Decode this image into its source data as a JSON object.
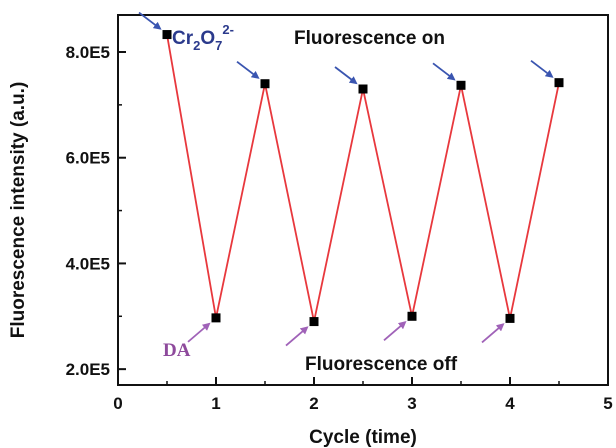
{
  "chart_data": {
    "type": "line",
    "xlabel": "Cycle (time)",
    "ylabel": "Fluorescence intensity (a.u.)",
    "xlim": [
      0,
      5
    ],
    "ylim": [
      170000,
      870000
    ],
    "x_ticks": [
      "0",
      "1",
      "2",
      "3",
      "4",
      "5"
    ],
    "y_ticks": [
      "2.0E5",
      "4.0E5",
      "6.0E5",
      "8.0E5"
    ],
    "y_tick_values": [
      200000,
      400000,
      600000,
      800000
    ],
    "x_tick_values": [
      0,
      1,
      2,
      3,
      4,
      5
    ],
    "series": [
      {
        "x": [
          0.5,
          1.0,
          1.5,
          2.0,
          2.5,
          3.0,
          3.5,
          4.0,
          4.5
        ],
        "y": [
          833000,
          297000,
          740000,
          290000,
          730000,
          300000,
          737000,
          296000,
          742000
        ]
      }
    ],
    "line_color": "#e8383d",
    "marker_color": "#000000",
    "annotations": {
      "on_label": "Fluorescence on",
      "off_label": "Fluorescence off",
      "cr_base": "Cr",
      "cr_sub1": "2",
      "cr_mid": "O",
      "cr_sub2": "7",
      "cr_sup": "2-",
      "da_label": "DA",
      "cr_color": "#2b3a8c",
      "da_color": "#8e4a9c",
      "blue_arrow_color": "#3a55b0",
      "purple_arrow_color": "#a062b8"
    }
  }
}
